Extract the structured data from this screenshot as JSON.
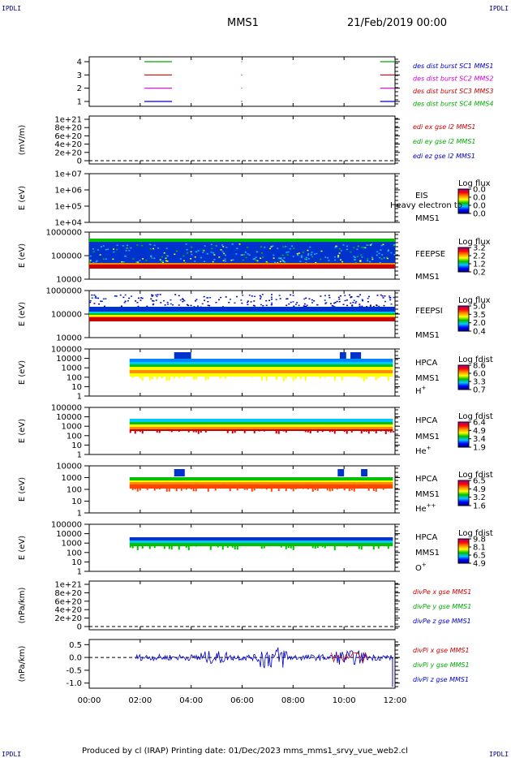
{
  "header": {
    "corner_tl": "IPDLI",
    "corner_tr": "IPDLI",
    "corner_bl": "IPDLI",
    "corner_br": "IPDLI",
    "spacecraft": "MMS1",
    "date": "21/Feb/2019 00:00"
  },
  "footer": {
    "text": "Produced by cl (IRAP)   Printing date: 01/Dec/2023   mms_mms1_srvy_vue_web2.cl"
  },
  "chart_data": {
    "type": "stacked-timeseries",
    "x_ticks": [
      "00:00",
      "02:00",
      "04:00",
      "06:00",
      "08:00",
      "10:00",
      "12:00"
    ],
    "xlim": [
      "00:00",
      "12:00"
    ],
    "panels": [
      {
        "id": "burst",
        "type": "line",
        "ylabel": "",
        "yticks": [
          "4",
          "3",
          "2",
          "1"
        ],
        "legend": [
          {
            "text": "des dist burst SC1 MMS1",
            "color": "#0000cc"
          },
          {
            "text": "des dist burst SC2 MMS2",
            "color": "#cc00cc"
          },
          {
            "text": "des dist burst SC3 MMS3",
            "color": "#cc0000"
          },
          {
            "text": "des dist burst SC4 MMS4",
            "color": "#00aa00"
          }
        ],
        "intervals": [
          {
            "level": 4,
            "color": "#00aa00",
            "segments": [
              [
                "02:10",
                "03:15"
              ],
              [
                "05:58",
                "06:00"
              ],
              [
                "11:25",
                "12:00"
              ]
            ]
          },
          {
            "level": 3,
            "color": "#cc0000",
            "segments": [
              [
                "02:10",
                "03:15"
              ],
              [
                "05:58",
                "06:00"
              ],
              [
                "11:25",
                "12:00"
              ]
            ]
          },
          {
            "level": 2,
            "color": "#cc00cc",
            "segments": [
              [
                "02:10",
                "03:15"
              ],
              [
                "05:58",
                "06:00"
              ],
              [
                "11:25",
                "12:00"
              ]
            ]
          },
          {
            "level": 1,
            "color": "#0000cc",
            "segments": [
              [
                "02:10",
                "03:15"
              ],
              [
                "05:58",
                "06:00"
              ],
              [
                "11:25",
                "12:00"
              ]
            ]
          }
        ]
      },
      {
        "id": "edi",
        "type": "line",
        "ylabel": "(mV/m)",
        "yticks": [
          "1e+21",
          "8e+20",
          "6e+20",
          "4e+20",
          "2e+20",
          "0"
        ],
        "legend": [
          {
            "text": "edi ex gse l2 MMS1",
            "color": "#cc0000"
          },
          {
            "text": "edi ey gse l2 MMS1",
            "color": "#00aa00"
          },
          {
            "text": "edi ez gse l2 MMS1",
            "color": "#0000cc"
          }
        ]
      },
      {
        "id": "eis",
        "type": "heatmap",
        "ylabel": "E (eV)",
        "yticks": [
          "1e+07",
          "1e+06",
          "1e+05",
          "1e+04"
        ],
        "side_labels": [
          "EIS",
          "MMS1"
        ],
        "overlay_text": "Heavy electron to",
        "colorbar": {
          "title": "Log flux",
          "ticks": [
            "0.0",
            "0.0",
            "0.0",
            "0.0"
          ]
        }
      },
      {
        "id": "feepse",
        "type": "heatmap",
        "ylabel": "E (eV)",
        "yticks": [
          "1000000",
          "100000",
          "10000"
        ],
        "side_labels": [
          "FEEPSE",
          "MMS1"
        ],
        "colorbar": {
          "title": "Log flux",
          "ticks": [
            "3.2",
            "2.2",
            "1.2",
            "0.2"
          ]
        }
      },
      {
        "id": "feepsi",
        "type": "heatmap",
        "ylabel": "E (eV)",
        "yticks": [
          "1000000",
          "100000",
          "10000"
        ],
        "side_labels": [
          "FEEPSI",
          "MMS1"
        ],
        "colorbar": {
          "title": "Log flux",
          "ticks": [
            "5.0",
            "3.5",
            "2.0",
            "0.4"
          ]
        }
      },
      {
        "id": "hpca_h",
        "type": "heatmap",
        "ylabel": "E (eV)",
        "yticks": [
          "100000",
          "10000",
          "1000",
          "100",
          "10",
          "1"
        ],
        "side_labels": [
          "HPCA",
          "MMS1",
          "H+"
        ],
        "colorbar": {
          "title": "Log fdist",
          "ticks": [
            "8.6",
            "6.0",
            "3.3",
            "0.7"
          ]
        }
      },
      {
        "id": "hpca_he",
        "type": "heatmap",
        "ylabel": "E (eV)",
        "yticks": [
          "100000",
          "10000",
          "1000",
          "100",
          "10",
          "1"
        ],
        "side_labels": [
          "HPCA",
          "MMS1",
          "He+"
        ],
        "colorbar": {
          "title": "Log fdist",
          "ticks": [
            "6.4",
            "4.9",
            "3.4",
            "1.9"
          ]
        }
      },
      {
        "id": "hpca_he2",
        "type": "heatmap",
        "ylabel": "E (eV)",
        "yticks": [
          "10000",
          "1000",
          "100",
          "10",
          "1"
        ],
        "side_labels": [
          "HPCA",
          "MMS1",
          "He++"
        ],
        "colorbar": {
          "title": "Log fdist",
          "ticks": [
            "6.5",
            "4.9",
            "3.2",
            "1.6"
          ]
        }
      },
      {
        "id": "hpca_o",
        "type": "heatmap",
        "ylabel": "E (eV)",
        "yticks": [
          "100000",
          "10000",
          "1000",
          "100",
          "10",
          "1"
        ],
        "side_labels": [
          "HPCA",
          "MMS1",
          "O+"
        ],
        "colorbar": {
          "title": "Log fdist",
          "ticks": [
            "9.8",
            "8.1",
            "6.5",
            "4.9"
          ]
        }
      },
      {
        "id": "divpe",
        "type": "line",
        "ylabel": "(nPa/km)",
        "yticks": [
          "1e+21",
          "8e+20",
          "6e+20",
          "4e+20",
          "2e+20",
          "0"
        ],
        "legend": [
          {
            "text": "divPe x gse MMS1",
            "color": "#cc0000"
          },
          {
            "text": "divPe y gse MMS1",
            "color": "#00aa00"
          },
          {
            "text": "divPe z gse MMS1",
            "color": "#0000cc"
          }
        ]
      },
      {
        "id": "divpi",
        "type": "line",
        "ylabel": "(nPa/km)",
        "yticks": [
          "0.5",
          "0.0",
          "-0.5",
          "-1.0"
        ],
        "ylim": [
          -1.2,
          0.7
        ],
        "legend": [
          {
            "text": "divPi x gse MMS1",
            "color": "#cc0000"
          },
          {
            "text": "divPi y gse MMS1",
            "color": "#00aa00"
          },
          {
            "text": "divPi z gse MMS1",
            "color": "#0000cc"
          }
        ]
      }
    ]
  }
}
